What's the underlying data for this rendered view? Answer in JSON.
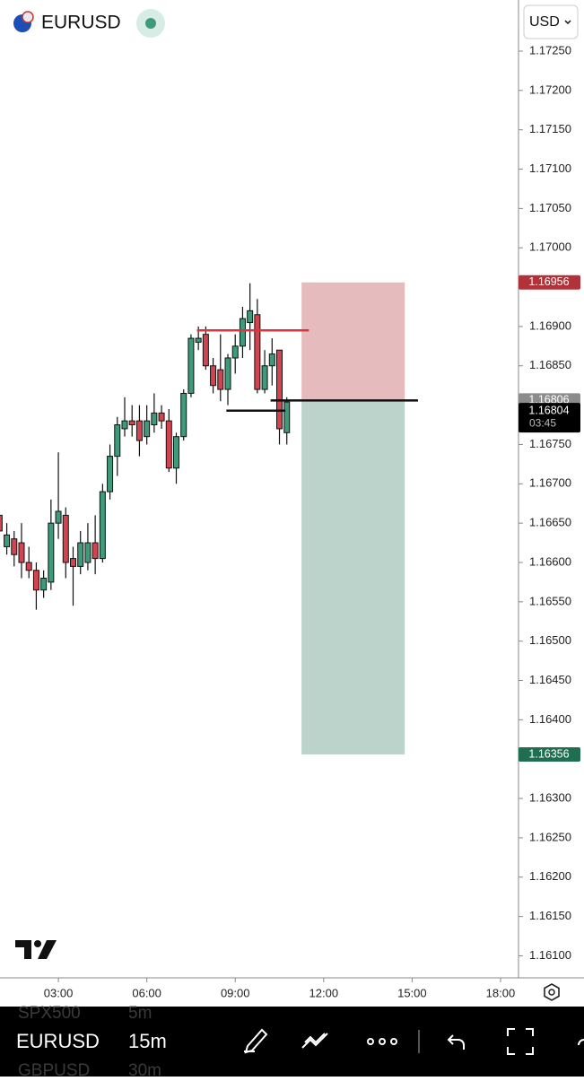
{
  "header": {
    "symbol": "EURUSD",
    "currency": "USD"
  },
  "chart_data": {
    "type": "candlestick",
    "x": [
      1.0,
      1.25,
      1.5,
      1.75,
      2.0,
      2.25,
      2.5,
      2.75,
      3.0,
      3.25,
      3.5,
      3.75,
      4.0,
      4.25,
      4.5,
      4.75,
      5.0,
      5.25,
      5.5,
      5.75,
      6.0,
      6.25,
      6.5,
      6.75,
      7.0,
      7.25,
      7.5,
      7.75,
      8.0,
      8.25,
      8.5,
      8.75,
      9.0,
      9.25,
      9.5,
      9.75,
      10.0,
      10.25,
      10.5,
      10.75
    ],
    "open": [
      1.1666,
      1.1662,
      1.1663,
      1.16625,
      1.166,
      1.1659,
      1.16565,
      1.16575,
      1.1665,
      1.1666,
      1.16605,
      1.16595,
      1.166,
      1.16625,
      1.16605,
      1.1669,
      1.16735,
      1.1677,
      1.1678,
      1.1678,
      1.1676,
      1.16775,
      1.1679,
      1.1678,
      1.1672,
      1.1676,
      1.16815,
      1.1688,
      1.1689,
      1.1685,
      1.16845,
      1.1682,
      1.1686,
      1.16875,
      1.16905,
      1.16915,
      1.1682,
      1.1685,
      1.1687,
      1.16765
    ],
    "high": [
      1.167,
      1.1665,
      1.1664,
      1.1665,
      1.1662,
      1.166,
      1.1659,
      1.1668,
      1.1674,
      1.1667,
      1.1662,
      1.1664,
      1.1665,
      1.1666,
      1.167,
      1.1675,
      1.16785,
      1.1681,
      1.168,
      1.168,
      1.168,
      1.16815,
      1.168,
      1.16795,
      1.16765,
      1.1682,
      1.1689,
      1.169,
      1.169,
      1.1686,
      1.1689,
      1.16865,
      1.1689,
      1.16925,
      1.16955,
      1.16935,
      1.1687,
      1.16885,
      1.1687,
      1.1681
    ],
    "low": [
      1.1662,
      1.1661,
      1.16595,
      1.1658,
      1.1658,
      1.1654,
      1.16555,
      1.16565,
      1.1663,
      1.1658,
      1.16545,
      1.16585,
      1.1659,
      1.16585,
      1.166,
      1.1668,
      1.1671,
      1.1676,
      1.1676,
      1.16735,
      1.1675,
      1.16765,
      1.1677,
      1.16715,
      1.167,
      1.16755,
      1.1681,
      1.1687,
      1.16845,
      1.16815,
      1.16805,
      1.168,
      1.1684,
      1.1686,
      1.1687,
      1.16815,
      1.16815,
      1.16825,
      1.1675,
      1.1675
    ],
    "close": [
      1.1664,
      1.16635,
      1.1661,
      1.166,
      1.1659,
      1.16565,
      1.1658,
      1.1665,
      1.16665,
      1.166,
      1.16595,
      1.16625,
      1.16625,
      1.16605,
      1.1669,
      1.16735,
      1.16775,
      1.1678,
      1.16775,
      1.16755,
      1.1678,
      1.1679,
      1.1678,
      1.1672,
      1.1676,
      1.16815,
      1.16885,
      1.16885,
      1.1685,
      1.16825,
      1.1682,
      1.1686,
      1.16875,
      1.1691,
      1.1692,
      1.1682,
      1.1685,
      1.16865,
      1.1677,
      1.16804
    ],
    "up_color": "#3f9a7a",
    "down_color": "#d24450",
    "xlim": [
      1.02,
      18.61
    ],
    "xticks": [
      {
        "value": 3,
        "label": "03:00"
      },
      {
        "value": 6,
        "label": "06:00"
      },
      {
        "value": 9,
        "label": "09:00"
      },
      {
        "value": 12,
        "label": "12:00"
      },
      {
        "value": 15,
        "label": "15:00"
      },
      {
        "value": 18,
        "label": "18:00"
      }
    ],
    "ylim": [
      1.16072,
      1.17315
    ],
    "yticks": [
      {
        "value": 1.1725,
        "label": "1.17250"
      },
      {
        "value": 1.172,
        "label": "1.17200"
      },
      {
        "value": 1.1715,
        "label": "1.17150"
      },
      {
        "value": 1.171,
        "label": "1.17100"
      },
      {
        "value": 1.1705,
        "label": "1.17050"
      },
      {
        "value": 1.17,
        "label": "1.17000"
      },
      {
        "value": 1.169,
        "label": "1.16900"
      },
      {
        "value": 1.1685,
        "label": "1.16850"
      },
      {
        "value": 1.1675,
        "label": "1.16750"
      },
      {
        "value": 1.167,
        "label": "1.16700"
      },
      {
        "value": 1.1665,
        "label": "1.16650"
      },
      {
        "value": 1.166,
        "label": "1.16600"
      },
      {
        "value": 1.1655,
        "label": "1.16550"
      },
      {
        "value": 1.165,
        "label": "1.16500"
      },
      {
        "value": 1.1645,
        "label": "1.16450"
      },
      {
        "value": 1.164,
        "label": "1.16400"
      },
      {
        "value": 1.163,
        "label": "1.16300"
      },
      {
        "value": 1.1625,
        "label": "1.16250"
      },
      {
        "value": 1.162,
        "label": "1.16200"
      },
      {
        "value": 1.1615,
        "label": "1.16150"
      },
      {
        "value": 1.161,
        "label": "1.16100"
      }
    ],
    "position": {
      "stop": 1.16956,
      "entry": 1.16806,
      "target": 1.16356,
      "start": 11.25,
      "end": 14.75,
      "stop_color": "#b2323a",
      "entry_color": "#8c8c8c",
      "target_color": "#1f6e52"
    },
    "current_price": 1.16804,
    "countdown": "03:45",
    "lines": [
      {
        "price": 1.16895,
        "start": 7.7,
        "end": 11.5,
        "color": "#d9363e"
      },
      {
        "price": 1.16793,
        "start": 8.7,
        "end": 10.7,
        "color": "#111111"
      },
      {
        "price": 1.16806,
        "start": 10.2,
        "end": 15.2,
        "color": "#111111"
      }
    ]
  },
  "toolbar": {
    "symbol": "EURUSD",
    "interval": "15m",
    "watchlist": [
      {
        "symbol": "SPX500",
        "interval": "5m"
      },
      {
        "symbol": "GBPUSD",
        "interval": "30m"
      }
    ]
  }
}
